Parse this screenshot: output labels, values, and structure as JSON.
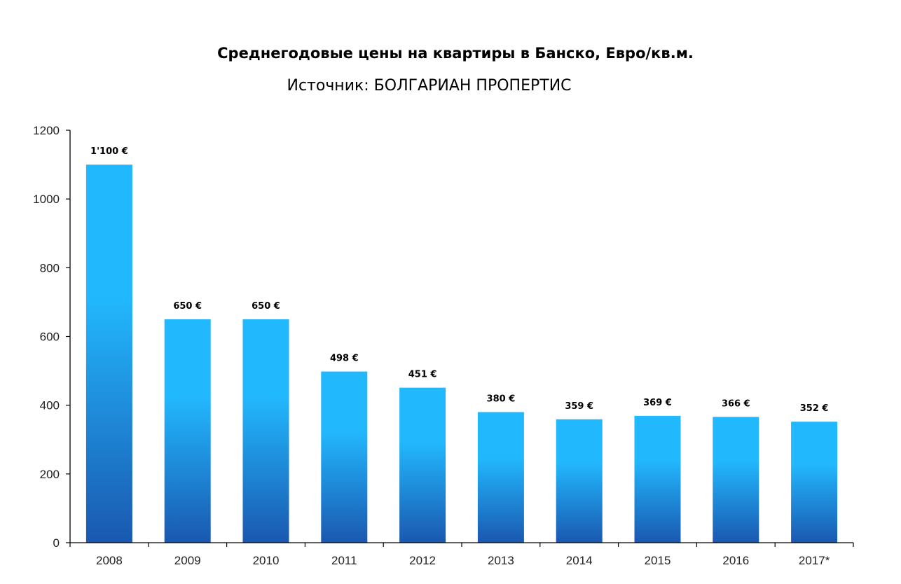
{
  "chart_data": {
    "type": "bar",
    "title": "Среднегодовые цены на квартиры в Банско, Евро/кв.м.",
    "subtitle": "Источник: БОЛГАРИАН ПРОПЕРТИС",
    "xlabel": "",
    "ylabel": "",
    "categories": [
      "2008",
      "2009",
      "2010",
      "2011",
      "2012",
      "2013",
      "2014",
      "2015",
      "2016",
      "2017*"
    ],
    "values": [
      1100,
      650,
      650,
      498,
      451,
      380,
      359,
      369,
      366,
      352
    ],
    "data_labels": [
      "1'100 €",
      "650 €",
      "650 €",
      "498 €",
      "451 €",
      "380 €",
      "359 €",
      "369 €",
      "366 €",
      "352 €"
    ],
    "ylim": [
      0,
      1200
    ],
    "yticks": [
      0,
      200,
      400,
      600,
      800,
      1000,
      1200
    ],
    "grid": false,
    "legend": "none",
    "colors": {
      "bar_top": "#22b8fd",
      "bar_bottom": "#1a58b0"
    }
  }
}
